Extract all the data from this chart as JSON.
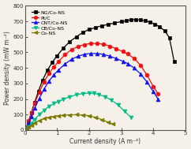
{
  "title": "",
  "xlabel": "Current density (A m⁻²)",
  "ylabel": "Power density (mW m⁻²)",
  "xlim": [
    0,
    5
  ],
  "ylim": [
    0,
    800
  ],
  "xticks": [
    0,
    1,
    2,
    3,
    4,
    5
  ],
  "yticks": [
    0,
    100,
    200,
    300,
    400,
    500,
    600,
    700,
    800
  ],
  "bg_color": "#f5f0e8",
  "series": [
    {
      "label": "NG/Co-NS",
      "color": "#000000",
      "marker": "s",
      "markersize": 3.5,
      "x": [
        0.05,
        0.12,
        0.2,
        0.3,
        0.42,
        0.55,
        0.7,
        0.85,
        1.0,
        1.2,
        1.4,
        1.6,
        1.8,
        2.0,
        2.2,
        2.4,
        2.6,
        2.8,
        3.0,
        3.15,
        3.3,
        3.45,
        3.6,
        3.75,
        3.9,
        4.05,
        4.2,
        4.35,
        4.5,
        4.65
      ],
      "y": [
        15,
        55,
        110,
        175,
        250,
        320,
        385,
        435,
        478,
        528,
        570,
        600,
        628,
        648,
        660,
        672,
        680,
        690,
        698,
        703,
        710,
        712,
        708,
        703,
        695,
        682,
        665,
        640,
        595,
        440
      ]
    },
    {
      "label": "Pt/C",
      "color": "#ee1111",
      "marker": "o",
      "markersize": 3.5,
      "x": [
        0.05,
        0.12,
        0.2,
        0.3,
        0.45,
        0.6,
        0.75,
        0.9,
        1.05,
        1.25,
        1.45,
        1.65,
        1.85,
        2.05,
        2.25,
        2.45,
        2.65,
        2.85,
        3.05,
        3.2,
        3.4,
        3.6,
        3.8,
        4.0,
        4.15
      ],
      "y": [
        20,
        60,
        110,
        170,
        245,
        310,
        365,
        407,
        442,
        485,
        518,
        538,
        550,
        558,
        558,
        552,
        540,
        523,
        505,
        490,
        462,
        418,
        355,
        280,
        232
      ]
    },
    {
      "label": "CNT/Co-NS",
      "color": "#1111ee",
      "marker": "^",
      "markersize": 3.5,
      "x": [
        0.05,
        0.12,
        0.2,
        0.3,
        0.45,
        0.6,
        0.75,
        0.9,
        1.05,
        1.25,
        1.45,
        1.65,
        1.85,
        2.05,
        2.25,
        2.45,
        2.65,
        2.85,
        3.05,
        3.2,
        3.4,
        3.6,
        3.8,
        4.0,
        4.15
      ],
      "y": [
        12,
        45,
        88,
        140,
        205,
        265,
        315,
        355,
        388,
        425,
        455,
        475,
        488,
        493,
        493,
        487,
        475,
        460,
        443,
        428,
        400,
        362,
        310,
        248,
        198
      ]
    },
    {
      "label": "CB/Co-NS",
      "color": "#00bb88",
      "marker": "v",
      "markersize": 3.5,
      "x": [
        0.05,
        0.12,
        0.2,
        0.3,
        0.45,
        0.6,
        0.75,
        0.9,
        1.05,
        1.2,
        1.4,
        1.6,
        1.8,
        2.0,
        2.15,
        2.3,
        2.5,
        2.7,
        2.9,
        3.1,
        3.3
      ],
      "y": [
        8,
        22,
        42,
        68,
        100,
        128,
        152,
        170,
        185,
        198,
        215,
        227,
        235,
        238,
        236,
        230,
        215,
        192,
        162,
        122,
        82
      ]
    },
    {
      "label": "Co-NS",
      "color": "#7a7a00",
      "marker": "<",
      "markersize": 3.5,
      "x": [
        0.05,
        0.12,
        0.2,
        0.3,
        0.45,
        0.6,
        0.75,
        0.9,
        1.05,
        1.2,
        1.4,
        1.6,
        1.8,
        2.0,
        2.2,
        2.4,
        2.6,
        2.75
      ],
      "y": [
        8,
        18,
        30,
        45,
        62,
        74,
        82,
        88,
        92,
        95,
        98,
        99,
        97,
        92,
        82,
        67,
        50,
        38
      ]
    }
  ]
}
